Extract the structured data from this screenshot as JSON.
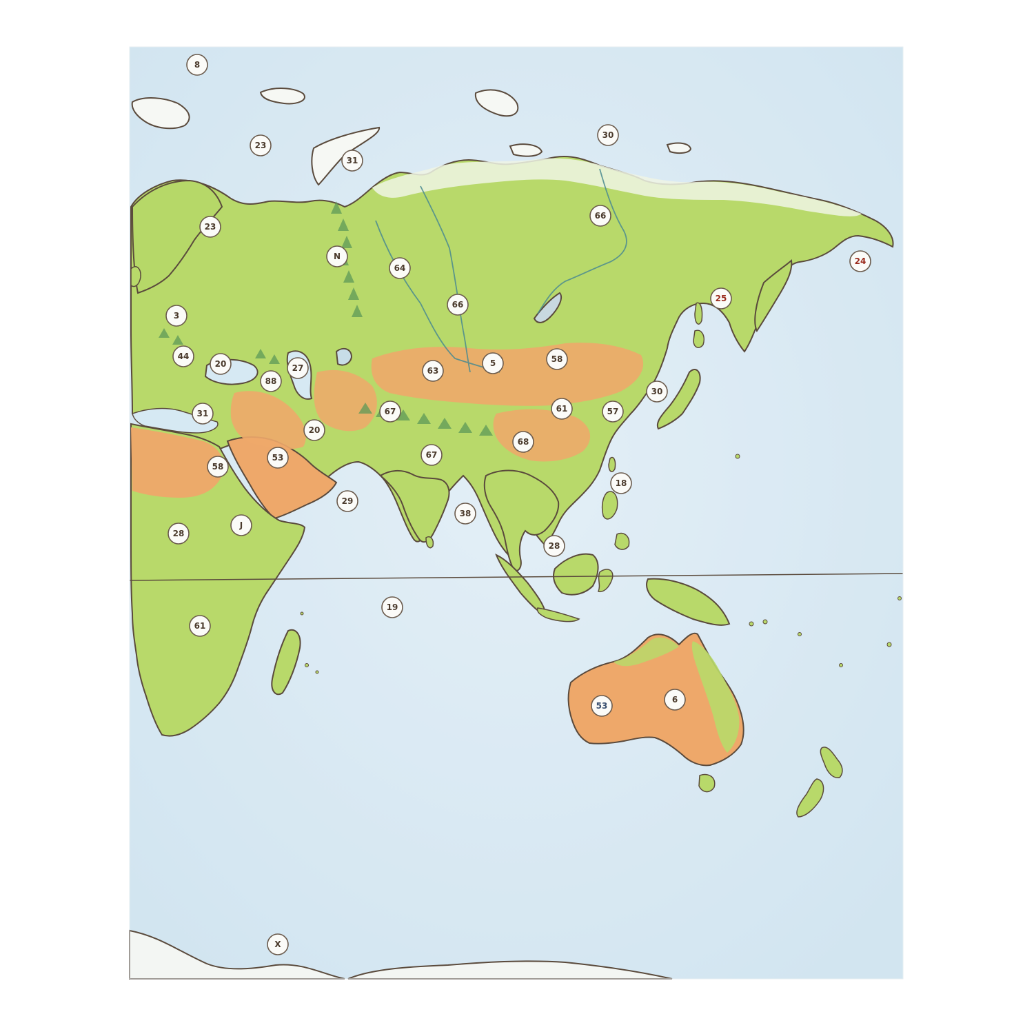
{
  "map": {
    "markers": [
      {
        "label": "8"
      },
      {
        "label": "23"
      },
      {
        "label": "31"
      },
      {
        "label": "30"
      },
      {
        "label": "66"
      },
      {
        "label": "23"
      },
      {
        "label": "N"
      },
      {
        "label": "64"
      },
      {
        "label": "66"
      },
      {
        "label": "24"
      },
      {
        "label": "25"
      },
      {
        "label": "3"
      },
      {
        "label": "44"
      },
      {
        "label": "20"
      },
      {
        "label": "27"
      },
      {
        "label": "88"
      },
      {
        "label": "63"
      },
      {
        "label": "5"
      },
      {
        "label": "58"
      },
      {
        "label": "30"
      },
      {
        "label": "31"
      },
      {
        "label": "67"
      },
      {
        "label": "61"
      },
      {
        "label": "57"
      },
      {
        "label": "20"
      },
      {
        "label": "68"
      },
      {
        "label": "58"
      },
      {
        "label": "53"
      },
      {
        "label": "67"
      },
      {
        "label": "18"
      },
      {
        "label": "29"
      },
      {
        "label": "38"
      },
      {
        "label": "28"
      },
      {
        "label": "J"
      },
      {
        "label": "28"
      },
      {
        "label": "19"
      },
      {
        "label": "61"
      },
      {
        "label": "53"
      },
      {
        "label": "6"
      },
      {
        "label": "X"
      }
    ]
  },
  "colors": {
    "ocean": "#dcebf4",
    "land": "#b8d96a",
    "desert": "#eea86a",
    "ice": "#f6f8f4",
    "coast": "#5a4a3c",
    "river": "#4a8a90",
    "mountain": "#5e9a58"
  }
}
